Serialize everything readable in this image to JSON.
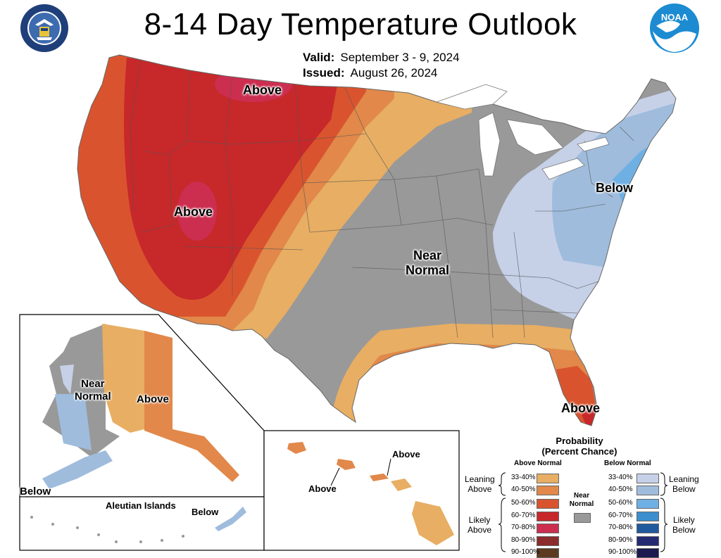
{
  "header": {
    "title": "8-14 Day Temperature Outlook",
    "valid_label": "Valid:",
    "valid_value": "September 3 - 9, 2024",
    "issued_label": "Issued:",
    "issued_value": "August 26, 2024",
    "noaa_logo_text": "NOAA"
  },
  "map_labels": {
    "conus_above_north": "Above",
    "conus_above_west": "Above",
    "conus_below": "Below",
    "conus_near_line1": "Near",
    "conus_near_line2": "Normal",
    "conus_above_florida": "Above",
    "alaska_near_line1": "Near",
    "alaska_near_line2": "Normal",
    "alaska_above": "Above",
    "alaska_below": "Below",
    "aleutian_title": "Aleutian Islands",
    "aleutian_below": "Below",
    "hawaii_above_1": "Above",
    "hawaii_above_2": "Above"
  },
  "colors": {
    "above_33_40": "#E8AE63",
    "above_40_50": "#E1884A",
    "above_50_60": "#D9542E",
    "above_60_70": "#C7282A",
    "above_70_80": "#CC2E50",
    "above_80_90": "#8C2B2B",
    "above_90_100": "#5C3A20",
    "near_normal": "#999999",
    "below_33_40": "#C6D1E8",
    "below_40_50": "#9FBCDD",
    "below_50_60": "#6EB0E3",
    "below_60_70": "#3B8FCF",
    "below_70_80": "#1F5A9E",
    "below_80_90": "#252B73",
    "below_90_100": "#1B1A4E"
  },
  "legend": {
    "title_line1": "Probability",
    "title_line2": "(Percent Chance)",
    "above_header": "Above Normal",
    "below_header": "Below Normal",
    "near_label_line1": "Near",
    "near_label_line2": "Normal",
    "leaning_above_1": "Leaning",
    "leaning_above_2": "Above",
    "likely_above_1": "Likely",
    "likely_above_2": "Above",
    "leaning_below_1": "Leaning",
    "leaning_below_2": "Below",
    "likely_below_1": "Likely",
    "likely_below_2": "Below",
    "ranges": [
      "33-40%",
      "40-50%",
      "50-60%",
      "60-70%",
      "70-80%",
      "80-90%",
      "90-100%"
    ]
  }
}
